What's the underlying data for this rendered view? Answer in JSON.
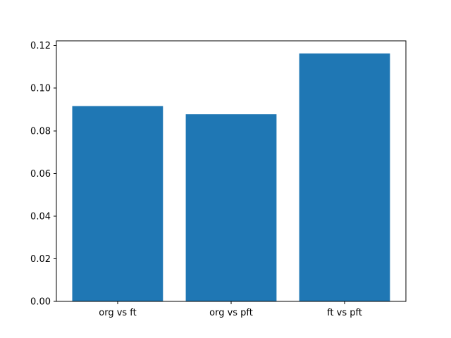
{
  "chart_data": {
    "type": "bar",
    "categories": [
      "org vs ft",
      "org vs pft",
      "ft vs pft"
    ],
    "values": [
      0.0916,
      0.0878,
      0.1163
    ],
    "title": "",
    "xlabel": "",
    "ylabel": "",
    "ylim": [
      0,
      0.1222
    ],
    "yticks": [
      0.0,
      0.02,
      0.04,
      0.06,
      0.08,
      0.1,
      0.12
    ],
    "ytick_labels": [
      "0.00",
      "0.02",
      "0.04",
      "0.06",
      "0.08",
      "0.10",
      "0.12"
    ],
    "bar_color": "#1f77b4",
    "spine_color": "#000000",
    "background_color": "#ffffff",
    "grid": false,
    "legend": false,
    "bar_width_fraction": 0.8
  }
}
